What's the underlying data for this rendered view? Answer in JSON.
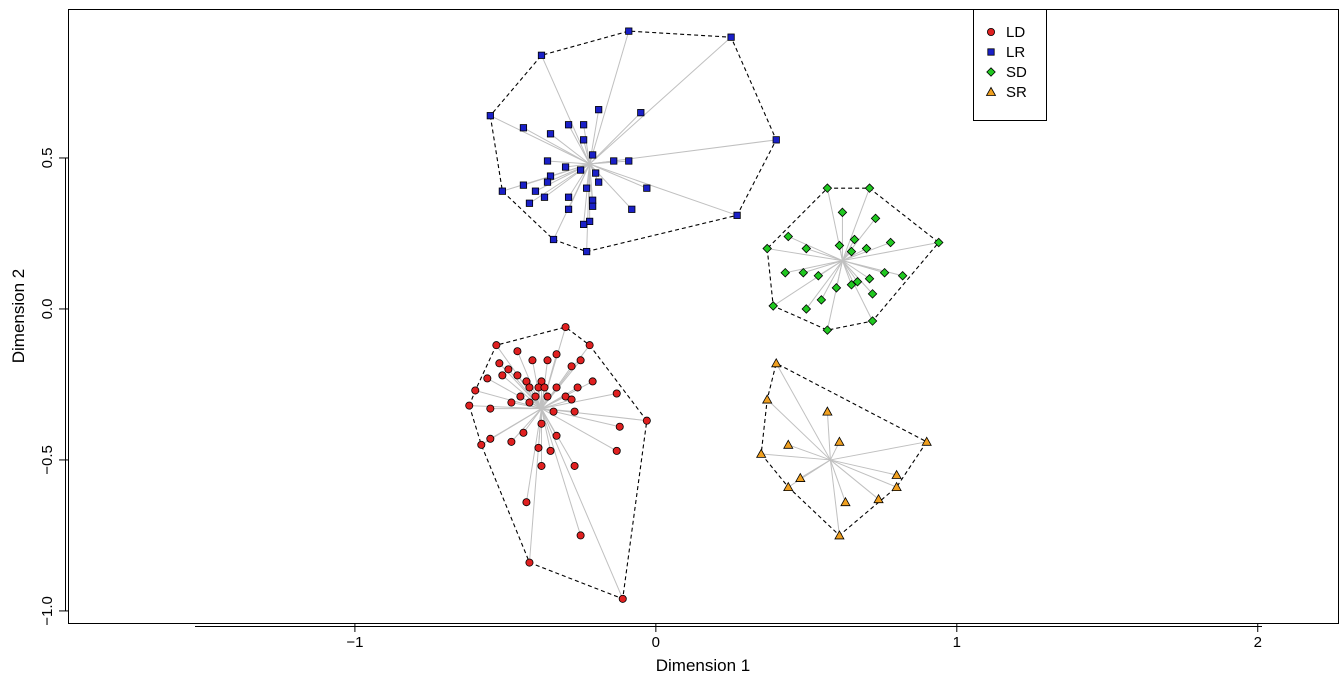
{
  "chart_data": {
    "type": "scatter",
    "title": "",
    "xlabel": "Dimension 1",
    "ylabel": "Dimension 2",
    "xlim": [
      -1.95,
      2.27
    ],
    "ylim": [
      -1.04,
      0.99
    ],
    "x_ticks": [
      -1,
      0,
      1,
      2
    ],
    "x_tick_labels": [
      "−1",
      "0",
      "1",
      "2"
    ],
    "y_ticks": [
      -1.0,
      -0.5,
      0.0,
      0.5
    ],
    "y_tick_labels": [
      "−1.0",
      "−0.5",
      "0.0",
      "0.5"
    ],
    "grid": false,
    "legend_position": "top-right",
    "hull_style": "dashed black",
    "spoke_color": "#c0c0c0",
    "series": [
      {
        "name": "LD",
        "marker": "circle",
        "color": "#e02020",
        "centroid": [
          -0.38,
          -0.33
        ],
        "points": [
          [
            -0.3,
            -0.06
          ],
          [
            -0.22,
            -0.12
          ],
          [
            -0.53,
            -0.12
          ],
          [
            -0.46,
            -0.14
          ],
          [
            -0.33,
            -0.15
          ],
          [
            -0.41,
            -0.17
          ],
          [
            -0.36,
            -0.17
          ],
          [
            -0.25,
            -0.17
          ],
          [
            -0.28,
            -0.19
          ],
          [
            -0.52,
            -0.18
          ],
          [
            -0.49,
            -0.2
          ],
          [
            -0.51,
            -0.22
          ],
          [
            -0.46,
            -0.22
          ],
          [
            -0.43,
            -0.24
          ],
          [
            -0.38,
            -0.24
          ],
          [
            -0.56,
            -0.23
          ],
          [
            -0.42,
            -0.26
          ],
          [
            -0.39,
            -0.26
          ],
          [
            -0.37,
            -0.26
          ],
          [
            -0.33,
            -0.26
          ],
          [
            -0.26,
            -0.26
          ],
          [
            -0.21,
            -0.24
          ],
          [
            -0.6,
            -0.27
          ],
          [
            -0.3,
            -0.29
          ],
          [
            -0.45,
            -0.29
          ],
          [
            -0.4,
            -0.29
          ],
          [
            -0.36,
            -0.29
          ],
          [
            -0.48,
            -0.31
          ],
          [
            -0.42,
            -0.31
          ],
          [
            -0.28,
            -0.3
          ],
          [
            -0.13,
            -0.28
          ],
          [
            -0.62,
            -0.32
          ],
          [
            -0.55,
            -0.33
          ],
          [
            -0.34,
            -0.34
          ],
          [
            -0.27,
            -0.34
          ],
          [
            -0.03,
            -0.37
          ],
          [
            -0.38,
            -0.38
          ],
          [
            -0.12,
            -0.39
          ],
          [
            -0.44,
            -0.41
          ],
          [
            -0.33,
            -0.42
          ],
          [
            -0.55,
            -0.43
          ],
          [
            -0.39,
            -0.46
          ],
          [
            -0.48,
            -0.44
          ],
          [
            -0.58,
            -0.45
          ],
          [
            -0.35,
            -0.47
          ],
          [
            -0.13,
            -0.47
          ],
          [
            -0.27,
            -0.52
          ],
          [
            -0.38,
            -0.52
          ],
          [
            -0.43,
            -0.64
          ],
          [
            -0.25,
            -0.75
          ],
          [
            -0.42,
            -0.84
          ],
          [
            -0.11,
            -0.96
          ]
        ]
      },
      {
        "name": "LR",
        "marker": "square",
        "color": "#1a20c8",
        "centroid": [
          -0.22,
          0.48
        ],
        "points": [
          [
            -0.09,
            0.92
          ],
          [
            0.25,
            0.9
          ],
          [
            -0.38,
            0.84
          ],
          [
            0.4,
            0.56
          ],
          [
            -0.55,
            0.64
          ],
          [
            -0.19,
            0.66
          ],
          [
            -0.05,
            0.65
          ],
          [
            -0.29,
            0.61
          ],
          [
            -0.24,
            0.61
          ],
          [
            -0.44,
            0.6
          ],
          [
            -0.35,
            0.58
          ],
          [
            -0.24,
            0.56
          ],
          [
            -0.21,
            0.51
          ],
          [
            -0.36,
            0.49
          ],
          [
            -0.14,
            0.49
          ],
          [
            -0.09,
            0.49
          ],
          [
            -0.3,
            0.47
          ],
          [
            -0.25,
            0.46
          ],
          [
            -0.2,
            0.45
          ],
          [
            -0.35,
            0.44
          ],
          [
            -0.19,
            0.42
          ],
          [
            -0.36,
            0.42
          ],
          [
            -0.44,
            0.41
          ],
          [
            -0.03,
            0.4
          ],
          [
            -0.4,
            0.39
          ],
          [
            -0.51,
            0.39
          ],
          [
            -0.23,
            0.4
          ],
          [
            -0.29,
            0.37
          ],
          [
            -0.37,
            0.37
          ],
          [
            -0.21,
            0.36
          ],
          [
            -0.42,
            0.35
          ],
          [
            -0.21,
            0.34
          ],
          [
            -0.29,
            0.33
          ],
          [
            -0.08,
            0.33
          ],
          [
            0.27,
            0.31
          ],
          [
            -0.22,
            0.29
          ],
          [
            -0.24,
            0.28
          ],
          [
            -0.34,
            0.23
          ],
          [
            -0.23,
            0.19
          ]
        ]
      },
      {
        "name": "SD",
        "marker": "diamond",
        "color": "#20c820",
        "centroid": [
          0.62,
          0.16
        ],
        "points": [
          [
            0.57,
            0.4
          ],
          [
            0.71,
            0.4
          ],
          [
            0.62,
            0.32
          ],
          [
            0.73,
            0.3
          ],
          [
            0.94,
            0.22
          ],
          [
            0.44,
            0.24
          ],
          [
            0.66,
            0.23
          ],
          [
            0.78,
            0.22
          ],
          [
            0.61,
            0.21
          ],
          [
            0.7,
            0.2
          ],
          [
            0.37,
            0.2
          ],
          [
            0.5,
            0.2
          ],
          [
            0.65,
            0.19
          ],
          [
            0.49,
            0.12
          ],
          [
            0.43,
            0.12
          ],
          [
            0.76,
            0.12
          ],
          [
            0.54,
            0.11
          ],
          [
            0.71,
            0.1
          ],
          [
            0.67,
            0.09
          ],
          [
            0.65,
            0.08
          ],
          [
            0.6,
            0.07
          ],
          [
            0.82,
            0.11
          ],
          [
            0.72,
            0.05
          ],
          [
            0.55,
            0.03
          ],
          [
            0.5,
            -0.0
          ],
          [
            0.39,
            0.01
          ],
          [
            0.72,
            -0.04
          ],
          [
            0.57,
            -0.07
          ]
        ]
      },
      {
        "name": "SR",
        "marker": "triangle",
        "color": "#f0a020",
        "centroid": [
          0.58,
          -0.5
        ],
        "points": [
          [
            0.4,
            -0.18
          ],
          [
            0.37,
            -0.3
          ],
          [
            0.57,
            -0.34
          ],
          [
            0.61,
            -0.44
          ],
          [
            0.9,
            -0.44
          ],
          [
            0.44,
            -0.45
          ],
          [
            0.35,
            -0.48
          ],
          [
            0.8,
            -0.55
          ],
          [
            0.48,
            -0.56
          ],
          [
            0.44,
            -0.59
          ],
          [
            0.8,
            -0.59
          ],
          [
            0.74,
            -0.63
          ],
          [
            0.63,
            -0.64
          ],
          [
            0.61,
            -0.75
          ]
        ]
      }
    ]
  }
}
